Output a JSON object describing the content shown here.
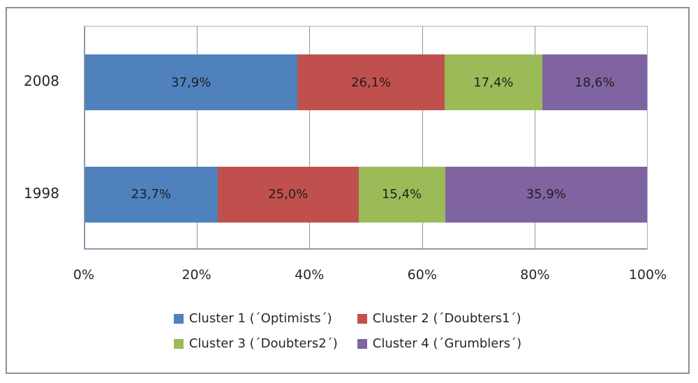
{
  "colors": {
    "frame_border": "#8f8f8f",
    "plot_border": "#9ab5d9",
    "gridline": "#969696",
    "axis_line": "#808080",
    "text": "#262626"
  },
  "chart_data": {
    "type": "bar",
    "orientation": "horizontal",
    "stacked": true,
    "title": "",
    "xlabel": "",
    "ylabel": "",
    "categories": [
      "2008",
      "1998"
    ],
    "series": [
      {
        "name": "Cluster 1 (´Optimists´)",
        "color": "#4F81BD",
        "values": [
          37.9,
          23.7
        ],
        "labels": [
          "37,9%",
          "23,7%"
        ]
      },
      {
        "name": "Cluster 2 (´Doubters1´)",
        "color": "#C0504D",
        "values": [
          26.1,
          25.0
        ],
        "labels": [
          "26,1%",
          "25,0%"
        ]
      },
      {
        "name": "Cluster 3 (´Doubters2´)",
        "color": "#9BBB59",
        "values": [
          17.4,
          15.4
        ],
        "labels": [
          "17,4%",
          "15,4%"
        ]
      },
      {
        "name": "Cluster 4 (´Grumblers´)",
        "color": "#8064A2",
        "values": [
          18.6,
          35.9
        ],
        "labels": [
          "18,6%",
          "35,9%"
        ]
      }
    ],
    "x_axis": {
      "range": [
        0,
        100
      ],
      "tick_labels": [
        "0%",
        "20%",
        "40%",
        "60%",
        "80%",
        "100%"
      ],
      "tick_percents": [
        0,
        20,
        40,
        60,
        80,
        100
      ],
      "gridline_percents": [
        20,
        40,
        60,
        80
      ],
      "grid": true
    },
    "legend": {
      "position": "bottom",
      "rows": 2,
      "columns": 2
    }
  }
}
